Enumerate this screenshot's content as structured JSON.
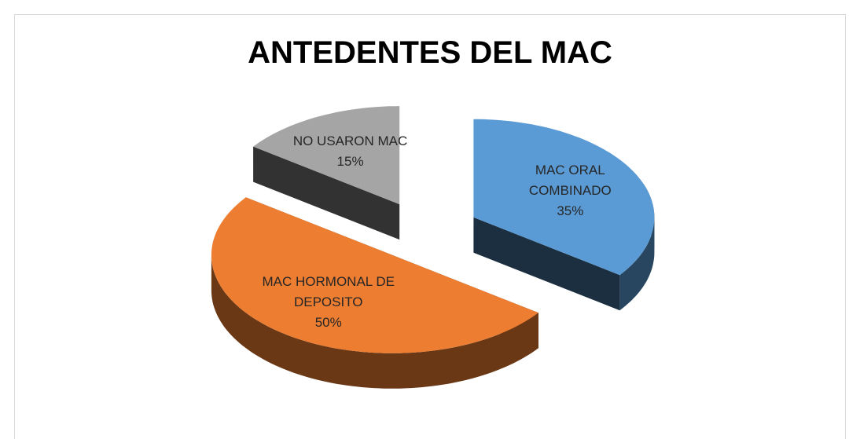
{
  "chart_data": {
    "type": "pie",
    "title": "ANTEDENTES DEL MAC",
    "categories": [
      "MAC ORAL COMBINADO",
      "MAC HORMONAL DE DEPOSITO",
      "NO USARON MAC"
    ],
    "values": [
      35,
      50,
      15
    ],
    "value_labels": [
      "35%",
      "50%",
      "15%"
    ],
    "colors": [
      "#5b9bd5",
      "#ed7d31",
      "#a5a5a5"
    ]
  }
}
